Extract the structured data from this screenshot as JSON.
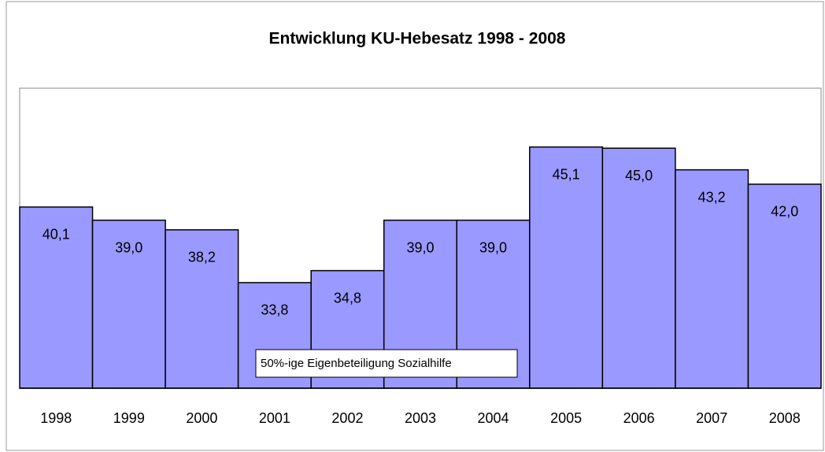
{
  "chart_data": {
    "type": "bar",
    "title": "Entwicklung KU-Hebesatz 1998 - 2008",
    "categories": [
      "1998",
      "1999",
      "2000",
      "2001",
      "2002",
      "2003",
      "2004",
      "2005",
      "2006",
      "2007",
      "2008"
    ],
    "values": [
      40.1,
      39.0,
      38.2,
      33.8,
      34.8,
      39.0,
      39.0,
      45.1,
      45.0,
      43.2,
      42.0
    ],
    "value_labels": [
      "40,1",
      "39,0",
      "38,2",
      "33,8",
      "34,8",
      "39,0",
      "39,0",
      "45,1",
      "45,0",
      "43,2",
      "42,0"
    ],
    "color": "#9999ff",
    "ylim": [
      25,
      50
    ],
    "annotation": "50%-ige Eigenbeteiligung Sozialhilfe"
  }
}
